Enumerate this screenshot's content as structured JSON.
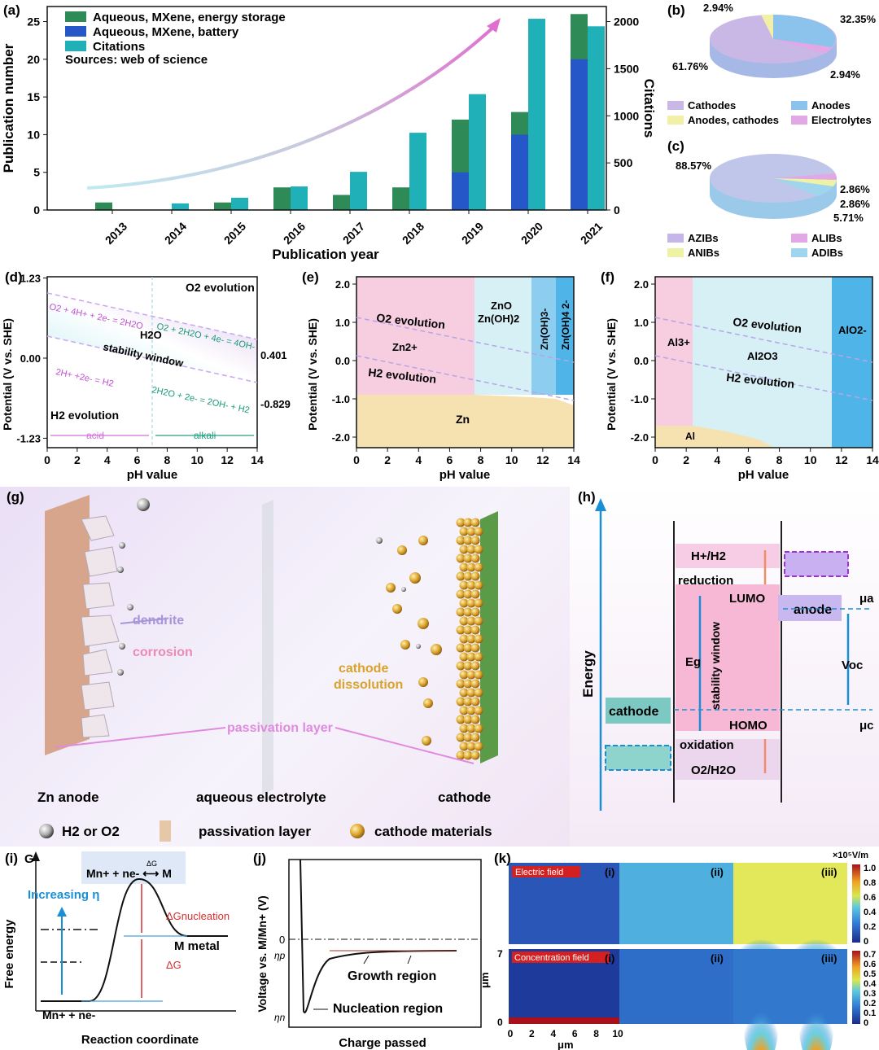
{
  "chart_data": [
    {
      "panel": "(a)",
      "type": "bar",
      "categories": [
        "2013",
        "2014",
        "2015",
        "2016",
        "2017",
        "2018",
        "2019",
        "2020",
        "2021"
      ],
      "series": [
        {
          "name": "Aqueous, MXene, energy storage",
          "values": [
            1,
            0,
            1,
            3,
            2,
            3,
            12,
            13,
            26
          ],
          "color": "#2e8b57"
        },
        {
          "name": "Aqueous, MXene, battery",
          "values": [
            0,
            0,
            0,
            0,
            0,
            0,
            5,
            10,
            20
          ],
          "color": "#2557c9"
        },
        {
          "name": "Citations",
          "values": [
            0,
            70,
            130,
            250,
            405,
            820,
            1230,
            2030,
            1950
          ],
          "color": "#1fb0b8"
        }
      ],
      "xlabel": "Publication year",
      "ylabel": "Publication number",
      "y2label": "Citations",
      "ylim": [
        0,
        27
      ],
      "y2lim": [
        0,
        2160
      ],
      "yticks": [
        "0",
        "5",
        "10",
        "15",
        "20",
        "25"
      ],
      "y2ticks": [
        "0",
        "500",
        "1000",
        "1500",
        "2000"
      ],
      "note": "Sources: web of science"
    },
    {
      "panel": "(b)",
      "type": "pie",
      "labels": [
        "Cathodes",
        "Anodes",
        "Anodes, cathodes",
        "Electrolytes"
      ],
      "values": [
        61.76,
        32.35,
        2.94,
        2.94
      ],
      "value_labels": [
        "61.76%",
        "32.35%",
        "2.94%",
        "2.94%"
      ],
      "colors": [
        "#c9b8e6",
        "#8cc3ec",
        "#f2efa6",
        "#e2a8e6"
      ]
    },
    {
      "panel": "(c)",
      "type": "pie",
      "labels": [
        "AZIBs",
        "ALIBs",
        "ANIBs",
        "ADIBs"
      ],
      "values": [
        88.57,
        2.86,
        2.86,
        5.71
      ],
      "value_labels": [
        "88.57%",
        "2.86%",
        "2.86%",
        "5.71%"
      ],
      "colors": [
        "#c4b6e8",
        "#e2a8e6",
        "#eef2a4",
        "#9fd6ee"
      ]
    },
    {
      "panel": "(d)",
      "type": "line",
      "xlabel": "pH value",
      "ylabel": "Potential (V vs. SHE)",
      "xlim": [
        0,
        14
      ],
      "ylim": [
        -1.23,
        1.23
      ],
      "xticks": [
        "0",
        "2",
        "4",
        "6",
        "8",
        "10",
        "12",
        "14"
      ],
      "yticks": [
        "1.23",
        "0.00",
        "-1.23"
      ],
      "series": [
        {
          "name": "O2 line",
          "x": [
            0,
            14
          ],
          "y": [
            1.23,
            0.401
          ]
        },
        {
          "name": "H2 line",
          "x": [
            0,
            14
          ],
          "y": [
            0.0,
            -0.829
          ]
        }
      ],
      "labels": {
        "o2": "O2 evolution",
        "h2": "H2 evolution",
        "water": "H2O",
        "window": "stability window",
        "acid": "acid",
        "alkali": "alkali",
        "eq1": "O2 + 4H+ + 2e- = 2H2O",
        "eq2": "O2 + 2H2O + 4e- = 4OH-",
        "eq3": "2H+ +2e- = H2",
        "eq4": "2H2O + 2e- = 2OH- + H2",
        "v1": "0.401",
        "v2": "-0.829"
      }
    },
    {
      "panel": "(e)",
      "type": "area",
      "xlabel": "pH value",
      "ylabel": "Potential (V vs. SHE)",
      "xlim": [
        0,
        14
      ],
      "ylim": [
        -2.2,
        2.2
      ],
      "xticks": [
        "0",
        "2",
        "4",
        "6",
        "8",
        "10",
        "12",
        "14"
      ],
      "yticks": [
        "2.0",
        "1.0",
        "0.0",
        "-1.0",
        "-2.0"
      ],
      "regions": [
        "Zn2+",
        "ZnO Zn(OH)2",
        "Zn(OH)3-",
        "Zn(OH)4 2-",
        "Zn"
      ],
      "labels": {
        "o2": "O2 evolution",
        "h2": "H2 evolution",
        "zn2": "Zn2+",
        "zno": "ZnO",
        "znoh2": "Zn(OH)2",
        "znoh3": "Zn(OH)3-",
        "znoh4": "Zn(OH)4 2-",
        "zn": "Zn"
      }
    },
    {
      "panel": "(f)",
      "type": "area",
      "xlabel": "pH value",
      "ylabel": "Potential (V vs. SHE)",
      "xlim": [
        0,
        14
      ],
      "ylim": [
        -2.2,
        2.2
      ],
      "xticks": [
        "0",
        "2",
        "4",
        "6",
        "8",
        "10",
        "12",
        "14"
      ],
      "yticks": [
        "2.0",
        "1.0",
        "0.0",
        "-1.0",
        "-2.0"
      ],
      "labels": {
        "o2": "O2 evolution",
        "h2": "H2 evolution",
        "al3": "Al3+",
        "al2o3": "Al2O3",
        "alo2": "AlO2-",
        "al": "Al"
      }
    }
  ],
  "panel_g": {
    "label": "(g)",
    "dendrite": "dendrite",
    "corrosion": "corrosion",
    "dissolution1": "cathode",
    "dissolution2": "dissolution",
    "passivation": "passivation layer",
    "zn_anode": "Zn anode",
    "electrolyte": "aqueous electrolyte",
    "cathode": "cathode",
    "legend_gas": "H2 or O2",
    "legend_pass": "passivation layer",
    "legend_cath": "cathode materials"
  },
  "panel_h": {
    "label": "(h)",
    "energy": "Energy",
    "h_h2": "H+/H2",
    "reduction": "reduction",
    "lumo": "LUMO",
    "homo": "HOMO",
    "oxidation": "oxidation",
    "o2_h2o": "O2/H2O",
    "eg": "Eg",
    "window": "stability window",
    "anode": "anode",
    "cathode": "cathode",
    "mu_a": "μa",
    "mu_c": "μc",
    "voc": "Voc"
  },
  "panel_i": {
    "label": "(i)",
    "g": "G",
    "reaction": "Mn+ + ne- ⟷ M",
    "dg_small": "ΔG",
    "increasing": "Increasing η",
    "dg_nuc": "ΔGnucleation",
    "metal": "M metal",
    "dg": "ΔG",
    "ion": "Mn+ + ne-",
    "ylabel": "Free energy",
    "xlabel": "Reaction coordinate"
  },
  "panel_j": {
    "label": "(j)",
    "ylabel": "Voltage vs. M/Mn+ (V)",
    "zero": "0",
    "eta_p": "ηp",
    "eta_n": "ηn",
    "growth": "Growth region",
    "nucleation": "Nucleation region",
    "xlabel": "Charge passed"
  },
  "panel_k": {
    "label": "(k)",
    "unit": "×10⁵V/m",
    "ef": "Electric field",
    "cf": "Concentration field",
    "i": "(i)",
    "ii": "(ii)",
    "iii": "(iii)",
    "xlabel": "μm",
    "ylabel": "μm",
    "ytop": "7",
    "ybot": "0",
    "xticks": [
      "0",
      "2",
      "4",
      "6",
      "8",
      "10"
    ],
    "cb1": [
      "1.0",
      "0.8",
      "0.6",
      "0.4",
      "0.2",
      "0"
    ],
    "cb2": [
      "0.7",
      "0.6",
      "0.5",
      "0.4",
      "0.3",
      "0.2",
      "0.1",
      "0"
    ]
  }
}
